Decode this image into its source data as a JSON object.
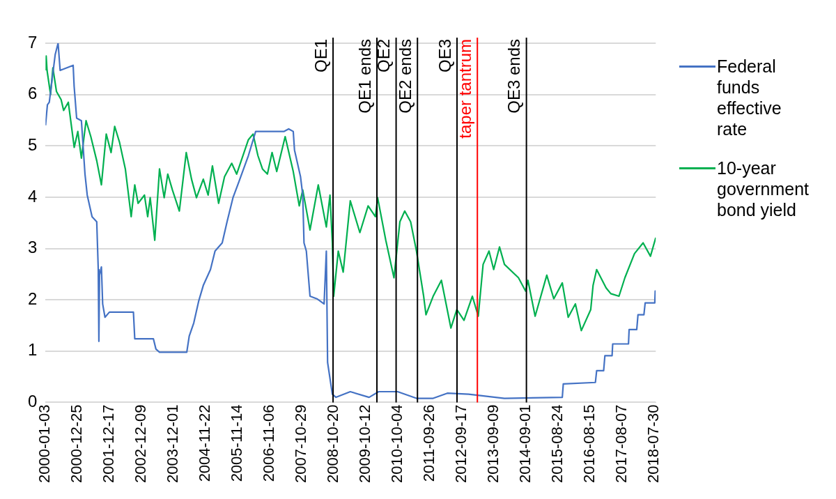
{
  "chart_data": {
    "type": "line",
    "xlim": [
      "2000-01-03",
      "2018-08-20"
    ],
    "xticks": [
      "2000-01-03",
      "2000-12-25",
      "2001-12-17",
      "2002-12-09",
      "2003-12-01",
      "2004-11-22",
      "2005-11-14",
      "2006-11-06",
      "2007-10-29",
      "2008-10-20",
      "2009-10-12",
      "2010-10-04",
      "2011-09-26",
      "2012-09-17",
      "2013-09-09",
      "2014-09-01",
      "2015-08-24",
      "2016-08-15",
      "2017-08-07",
      "2018-07-30"
    ],
    "ylim": [
      0,
      7
    ],
    "yticks": [
      0,
      1,
      2,
      3,
      4,
      5,
      6,
      7
    ],
    "grid": "y",
    "legend": "right",
    "marker": "none",
    "series": [
      {
        "name": "Federal funds effective rate",
        "color": "#4472c4",
        "x": [
          "2000-01-03",
          "2000-01-24",
          "2000-02-14",
          "2000-04-20",
          "2000-05-22",
          "2000-06-14",
          "2000-11-06",
          "2000-11-17",
          "2000-12-15",
          "2001-02-06",
          "2001-03-18",
          "2001-04-12",
          "2001-06-05",
          "2001-07-27",
          "2001-08-13",
          "2001-08-20",
          "2001-08-27",
          "2001-09-17",
          "2001-10-01",
          "2001-10-27",
          "2001-12-15",
          "2002-09-09",
          "2002-09-24",
          "2003-04-20",
          "2003-05-18",
          "2003-06-27",
          "2004-04-26",
          "2004-05-23",
          "2004-07-13",
          "2004-09-05",
          "2004-10-27",
          "2005-01-15",
          "2005-03-07",
          "2005-05-26",
          "2005-07-19",
          "2005-09-23",
          "2005-11-28",
          "2006-03-14",
          "2006-06-03",
          "2007-04-13",
          "2007-06-06",
          "2007-07-27",
          "2007-08-10",
          "2007-10-16",
          "2007-11-10",
          "2007-11-24",
          "2007-12-20",
          "2008-01-30",
          "2008-04-16",
          "2008-07-05",
          "2008-07-30",
          "2008-08-13",
          "2008-10-05",
          "2008-11-15",
          "2009-04-23",
          "2009-11-19",
          "2010-03-05",
          "2010-10-03",
          "2011-05-01",
          "2011-11-03",
          "2012-04-09",
          "2012-12-03",
          "2014-01-06",
          "2015-10-13",
          "2015-10-24",
          "2016-10-16",
          "2016-10-30",
          "2017-01-16",
          "2017-01-30",
          "2017-04-20",
          "2017-04-27",
          "2017-10-20",
          "2017-10-27",
          "2018-01-20",
          "2018-02-03",
          "2018-04-10",
          "2018-04-24",
          "2018-08-09",
          "2018-08-14",
          "2018-08-20"
        ],
        "values": [
          5.4,
          5.8,
          5.85,
          6.78,
          7.0,
          6.47,
          6.57,
          6.16,
          5.54,
          5.49,
          4.45,
          4.04,
          3.62,
          3.52,
          2.59,
          1.19,
          2.48,
          2.64,
          1.92,
          1.66,
          1.76,
          1.76,
          1.24,
          1.24,
          1.04,
          0.98,
          0.98,
          1.29,
          1.55,
          1.97,
          2.28,
          2.59,
          2.95,
          3.11,
          3.52,
          3.99,
          4.3,
          4.81,
          5.28,
          5.28,
          5.33,
          5.28,
          4.92,
          4.4,
          4.04,
          3.11,
          2.95,
          2.07,
          2.02,
          1.92,
          2.95,
          0.78,
          0.16,
          0.1,
          0.21,
          0.1,
          0.21,
          0.21,
          0.08,
          0.08,
          0.18,
          0.16,
          0.08,
          0.1,
          0.36,
          0.39,
          0.62,
          0.62,
          0.91,
          0.91,
          1.14,
          1.14,
          1.42,
          1.42,
          1.71,
          1.71,
          1.94,
          1.94,
          2.17,
          2.17
        ]
      },
      {
        "name": "10-year government bond yield",
        "color": "#00b050",
        "x": [
          "2000-01-03",
          "2000-01-10",
          "2000-01-20",
          "2000-02-28",
          "2000-03-25",
          "2000-05-04",
          "2000-06-25",
          "2000-07-23",
          "2000-09-13",
          "2000-11-18",
          "2000-12-28",
          "2001-02-06",
          "2001-03-30",
          "2001-05-22",
          "2001-07-27",
          "2001-09-17",
          "2001-11-10",
          "2002-01-03",
          "2002-02-12",
          "2002-04-07",
          "2002-06-11",
          "2002-08-15",
          "2002-09-24",
          "2002-10-31",
          "2003-01-10",
          "2003-02-15",
          "2003-03-15",
          "2003-05-05",
          "2003-06-27",
          "2003-08-18",
          "2003-09-27",
          "2003-11-18",
          "2004-02-03",
          "2004-04-20",
          "2004-06-18",
          "2004-08-12",
          "2004-10-27",
          "2004-12-20",
          "2005-02-06",
          "2005-04-16",
          "2005-06-21",
          "2005-09-09",
          "2005-11-03",
          "2006-03-14",
          "2006-05-05",
          "2006-06-28",
          "2006-08-18",
          "2006-10-12",
          "2006-12-03",
          "2007-01-24",
          "2007-04-28",
          "2007-07-27",
          "2007-10-02",
          "2007-11-10",
          "2008-01-30",
          "2008-05-01",
          "2008-07-30",
          "2008-09-09",
          "2008-10-05",
          "2008-10-20",
          "2008-12-10",
          "2009-02-03",
          "2009-04-23",
          "2009-08-08",
          "2009-11-08",
          "2010-01-28",
          "2010-02-22",
          "2010-05-24",
          "2010-08-23",
          "2010-10-28",
          "2010-12-21",
          "2011-02-25",
          "2011-05-01",
          "2011-07-20",
          "2011-08-15",
          "2011-11-03",
          "2012-02-03",
          "2012-05-19",
          "2012-07-24",
          "2012-10-12",
          "2013-01-13",
          "2013-03-20",
          "2013-05-13",
          "2013-07-18",
          "2013-09-08",
          "2013-11-12",
          "2014-01-06",
          "2014-06-11",
          "2014-08-30",
          "2014-09-25",
          "2014-12-14",
          "2015-04-23",
          "2015-07-10",
          "2015-10-13",
          "2015-12-18",
          "2016-03-07",
          "2016-05-12",
          "2016-08-25",
          "2016-09-20",
          "2016-10-30",
          "2017-02-13",
          "2017-04-06",
          "2017-07-06",
          "2017-09-10",
          "2017-12-26",
          "2018-04-01",
          "2018-06-22",
          "2018-08-20"
        ],
        "values": [
          6.47,
          6.75,
          6.47,
          6.0,
          6.52,
          6.06,
          5.9,
          5.69,
          5.85,
          4.97,
          5.28,
          4.76,
          5.49,
          5.18,
          4.71,
          4.24,
          5.23,
          4.87,
          5.38,
          5.07,
          4.55,
          3.62,
          4.24,
          3.88,
          4.04,
          3.62,
          3.99,
          3.16,
          4.55,
          3.99,
          4.45,
          4.14,
          3.73,
          4.87,
          4.35,
          3.99,
          4.35,
          4.04,
          4.61,
          3.88,
          4.4,
          4.66,
          4.45,
          5.12,
          5.23,
          4.81,
          4.55,
          4.45,
          4.87,
          4.5,
          5.18,
          4.5,
          3.83,
          4.14,
          3.36,
          4.24,
          3.42,
          4.04,
          3.11,
          2.07,
          2.95,
          2.54,
          3.93,
          3.31,
          3.83,
          3.62,
          3.99,
          3.16,
          2.43,
          3.52,
          3.73,
          3.52,
          2.95,
          2.07,
          1.71,
          2.07,
          2.38,
          1.45,
          1.81,
          1.6,
          2.07,
          1.68,
          2.69,
          2.95,
          2.59,
          3.03,
          2.69,
          2.43,
          2.17,
          2.38,
          1.68,
          2.48,
          2.02,
          2.33,
          1.66,
          1.92,
          1.4,
          1.81,
          2.28,
          2.59,
          2.23,
          2.12,
          2.07,
          2.43,
          2.9,
          3.11,
          2.85,
          3.21
        ]
      }
    ],
    "ref_lines": [
      {
        "axis": "x",
        "value": "2008-10-13",
        "label": "QE1",
        "color": "#000000"
      },
      {
        "axis": "x",
        "value": "2010-02-14",
        "label": "QE1 ends",
        "color": "#000000"
      },
      {
        "axis": "x",
        "value": "2010-09-16",
        "label": "QE2",
        "color": "#000000"
      },
      {
        "axis": "x",
        "value": "2011-05-12",
        "label": "QE2 ends",
        "color": "#000000"
      },
      {
        "axis": "x",
        "value": "2012-07-26",
        "label": "QE3",
        "color": "#000000"
      },
      {
        "axis": "x",
        "value": "2013-03-10",
        "label": "taper tantrum",
        "color": "#ff0000"
      },
      {
        "axis": "x",
        "value": "2014-09-08",
        "label": "QE3 ends",
        "color": "#000000"
      }
    ]
  }
}
